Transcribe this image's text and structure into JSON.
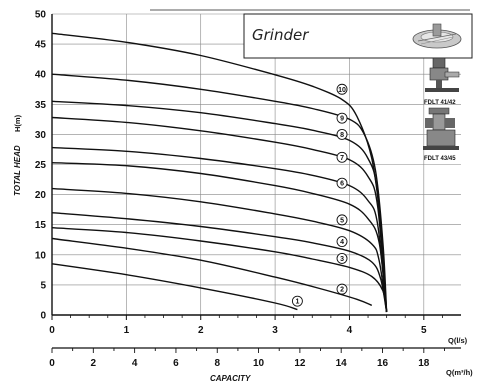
{
  "chart_data": {
    "type": "line",
    "title": "Grinder",
    "ylabel": "TOTAL HEAD",
    "yunit": "H(m)",
    "xlabel": "CAPACITY",
    "x_unit_primary": "Q(l/s)",
    "x_unit_secondary": "Q(m³/h)",
    "ylim": [
      0,
      50
    ],
    "xlim": [
      0,
      5.5
    ],
    "y_ticks": [
      "0",
      "5",
      "10",
      "15",
      "20",
      "25",
      "30",
      "35",
      "40",
      "45",
      "50"
    ],
    "x_ticks_primary": [
      "0",
      "1",
      "2",
      "3",
      "4",
      "5"
    ],
    "x_ticks_secondary": [
      "0",
      "2",
      "4",
      "6",
      "8",
      "10",
      "12",
      "14",
      "16",
      "18"
    ],
    "grid": true,
    "series": [
      {
        "name": "1",
        "points": [
          [
            0,
            8.5
          ],
          [
            1,
            6.7
          ],
          [
            2,
            4.5
          ],
          [
            3,
            2.0
          ],
          [
            3.3,
            0.9
          ]
        ]
      },
      {
        "name": "2",
        "points": [
          [
            0,
            12.7
          ],
          [
            1,
            11.1
          ],
          [
            2,
            9.1
          ],
          [
            3,
            6.3
          ],
          [
            3.6,
            4.4
          ],
          [
            4.1,
            2.6
          ],
          [
            4.3,
            1.6
          ]
        ]
      },
      {
        "name": "3",
        "points": [
          [
            0,
            14.5
          ],
          [
            1,
            13.7
          ],
          [
            2,
            12.3
          ],
          [
            3,
            10.5
          ],
          [
            3.5,
            9.3
          ],
          [
            4.0,
            7.9
          ],
          [
            4.3,
            6.4
          ],
          [
            4.45,
            4.0
          ],
          [
            4.5,
            0.5
          ]
        ]
      },
      {
        "name": "4",
        "points": [
          [
            0,
            17.0
          ],
          [
            1,
            16.0
          ],
          [
            2,
            14.7
          ],
          [
            3,
            13.0
          ],
          [
            3.5,
            12.0
          ],
          [
            4.0,
            10.6
          ],
          [
            4.3,
            8.8
          ],
          [
            4.42,
            6.0
          ],
          [
            4.5,
            0.5
          ]
        ]
      },
      {
        "name": "5",
        "points": [
          [
            0,
            21.0
          ],
          [
            1,
            20.2
          ],
          [
            2,
            18.8
          ],
          [
            3,
            16.8
          ],
          [
            3.5,
            15.6
          ],
          [
            4.0,
            14.0
          ],
          [
            4.3,
            11.8
          ],
          [
            4.4,
            9.0
          ],
          [
            4.5,
            0.5
          ]
        ]
      },
      {
        "name": "6",
        "points": [
          [
            0,
            25.3
          ],
          [
            1,
            24.8
          ],
          [
            2,
            23.5
          ],
          [
            3,
            21.5
          ],
          [
            3.5,
            20.2
          ],
          [
            4.0,
            18.4
          ],
          [
            4.25,
            16.0
          ],
          [
            4.4,
            12.0
          ],
          [
            4.5,
            0.5
          ]
        ]
      },
      {
        "name": "7",
        "points": [
          [
            0,
            27.8
          ],
          [
            1,
            27.2
          ],
          [
            2,
            26.0
          ],
          [
            3,
            24.3
          ],
          [
            3.5,
            23.2
          ],
          [
            4.0,
            21.5
          ],
          [
            4.25,
            19.0
          ],
          [
            4.38,
            15.0
          ],
          [
            4.5,
            0.5
          ]
        ]
      },
      {
        "name": "8",
        "points": [
          [
            0,
            32.8
          ],
          [
            1,
            32.0
          ],
          [
            2,
            30.6
          ],
          [
            3,
            28.7
          ],
          [
            3.5,
            27.5
          ],
          [
            4.0,
            25.8
          ],
          [
            4.25,
            23.0
          ],
          [
            4.38,
            18.0
          ],
          [
            4.5,
            0.5
          ]
        ]
      },
      {
        "name": "9",
        "points": [
          [
            0,
            35.5
          ],
          [
            1,
            34.8
          ],
          [
            2,
            33.6
          ],
          [
            3,
            31.8
          ],
          [
            3.5,
            30.7
          ],
          [
            4.0,
            29.0
          ],
          [
            4.25,
            26.0
          ],
          [
            4.38,
            20.0
          ],
          [
            4.5,
            0.5
          ]
        ]
      },
      {
        "name": "10",
        "points": [
          [
            0,
            40.0
          ],
          [
            1,
            39.0
          ],
          [
            2,
            37.5
          ],
          [
            3,
            35.5
          ],
          [
            3.5,
            34.3
          ],
          [
            4.0,
            32.5
          ],
          [
            4.2,
            30.0
          ],
          [
            4.35,
            24.0
          ],
          [
            4.45,
            12.0
          ],
          [
            4.5,
            0.5
          ]
        ]
      },
      {
        "name": "",
        "points": [
          [
            0,
            46.8
          ],
          [
            1,
            45.3
          ],
          [
            2,
            43.1
          ],
          [
            3,
            39.9
          ],
          [
            3.5,
            38.0
          ],
          [
            3.9,
            35.8
          ],
          [
            4.1,
            33.0
          ],
          [
            4.3,
            26.0
          ],
          [
            4.42,
            15.0
          ],
          [
            4.5,
            0.5
          ]
        ]
      }
    ],
    "curve_labels": [
      {
        "text": "1",
        "x": 3.3,
        "y": 2.3
      },
      {
        "text": "2",
        "x": 3.9,
        "y": 4.3
      },
      {
        "text": "3",
        "x": 3.9,
        "y": 9.4
      },
      {
        "text": "4",
        "x": 3.9,
        "y": 12.2
      },
      {
        "text": "5",
        "x": 3.9,
        "y": 15.8
      },
      {
        "text": "6",
        "x": 3.9,
        "y": 21.9
      },
      {
        "text": "7",
        "x": 3.9,
        "y": 26.2
      },
      {
        "text": "8",
        "x": 3.9,
        "y": 30.0
      },
      {
        "text": "9",
        "x": 3.9,
        "y": 32.7
      },
      {
        "text": "10",
        "x": 3.9,
        "y": 37.5
      }
    ],
    "models": [
      "FDLT 41/42",
      "FDLT 43/45"
    ]
  }
}
